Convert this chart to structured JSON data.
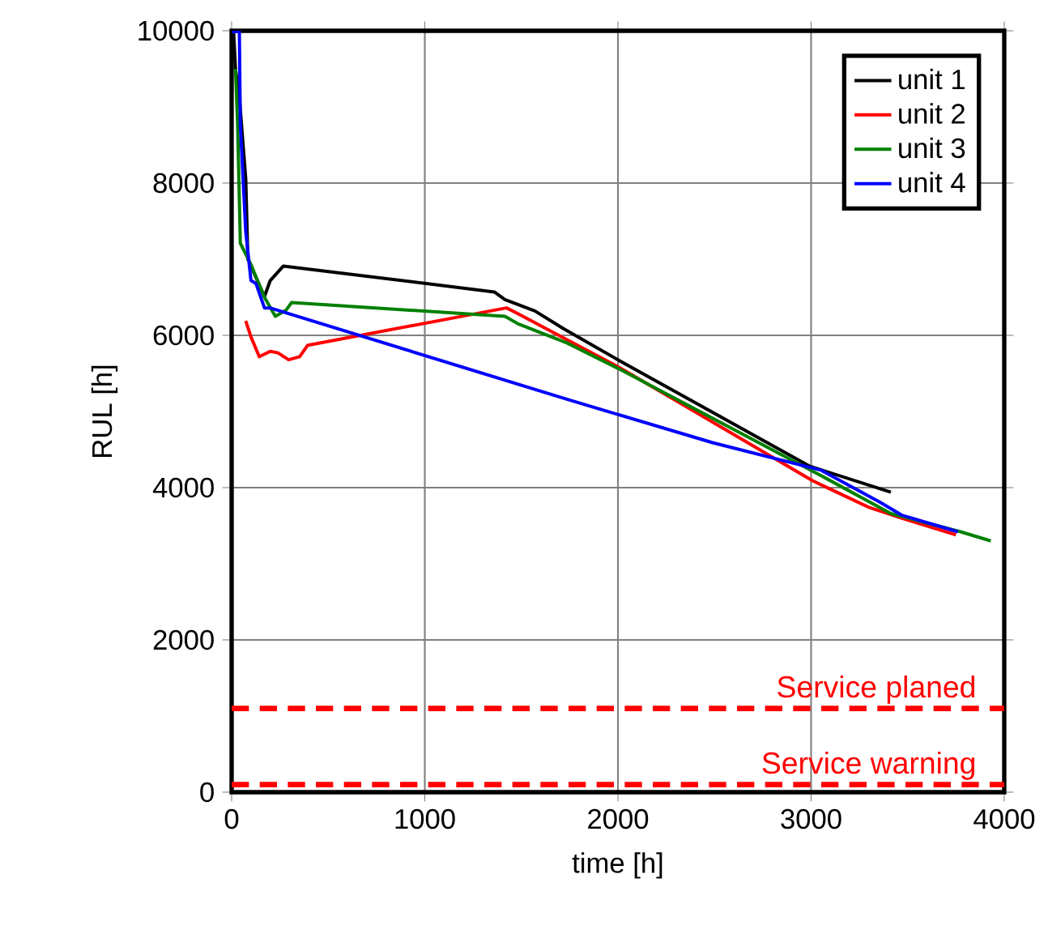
{
  "chart_data": {
    "type": "line",
    "xlabel": "time [h]",
    "ylabel": "RUL [h]",
    "xlim": [
      0,
      4000
    ],
    "xticks": [
      0,
      1000,
      2000,
      3000,
      4000
    ],
    "ylim": [
      0,
      10000
    ],
    "yticks": [
      0,
      2000,
      4000,
      6000,
      8000,
      10000
    ],
    "grid": true,
    "legend": "top right",
    "marker": "none",
    "line_style": "solid",
    "series": [
      {
        "name": "unit 1",
        "color": "#000000",
        "x": [
          10,
          20,
          40,
          73,
          84,
          170,
          200,
          268,
          1360,
          1415,
          1570,
          1720,
          2013,
          2994,
          3413
        ],
        "values": [
          10000,
          9500,
          9130,
          8060,
          7000,
          6510,
          6720,
          6910,
          6570,
          6470,
          6320,
          6085,
          5660,
          4280,
          3940
        ]
      },
      {
        "name": "unit 2",
        "color": "#ff0000",
        "x": [
          73,
          100,
          143,
          200,
          240,
          295,
          352,
          394,
          1423,
          1470,
          2013,
          3008,
          3300,
          3468,
          3750
        ],
        "values": [
          6190,
          5980,
          5720,
          5790,
          5770,
          5680,
          5720,
          5870,
          6360,
          6300,
          5570,
          4090,
          3740,
          3600,
          3380
        ]
      },
      {
        "name": "unit 3",
        "color": "#008000",
        "x": [
          20,
          31,
          45,
          100,
          170,
          226,
          282,
          310,
          1415,
          1484,
          1736,
          2013,
          3050,
          3413,
          3774,
          3930
        ],
        "values": [
          9500,
          8770,
          7210,
          6930,
          6500,
          6250,
          6330,
          6430,
          6250,
          6150,
          5900,
          5550,
          4160,
          3660,
          3420,
          3300
        ]
      },
      {
        "name": "unit 4",
        "color": "#0000ff",
        "x": [
          3,
          40,
          45,
          73,
          100,
          126,
          170,
          199,
          1736,
          2490,
          3050,
          3355,
          3468,
          3760
        ],
        "values": [
          9980,
          10000,
          8770,
          7360,
          6720,
          6680,
          6360,
          6360,
          5160,
          4590,
          4230,
          3810,
          3640,
          3420
        ]
      }
    ],
    "ref_lines": [
      {
        "axis": "y",
        "value": 1100,
        "label": "Service planed",
        "color": "#ff0000",
        "line_style": "dashed"
      },
      {
        "axis": "y",
        "value": 100,
        "label": "Service warning",
        "color": "#ff0000",
        "line_style": "dashed"
      }
    ]
  }
}
